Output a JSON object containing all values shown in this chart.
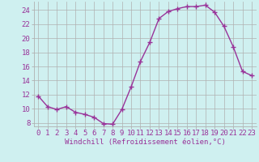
{
  "x": [
    0,
    1,
    2,
    3,
    4,
    5,
    6,
    7,
    8,
    9,
    10,
    11,
    12,
    13,
    14,
    15,
    16,
    17,
    18,
    19,
    20,
    21,
    22,
    23
  ],
  "y": [
    11.8,
    10.3,
    9.9,
    10.3,
    9.5,
    9.2,
    8.8,
    7.9,
    7.8,
    9.9,
    13.1,
    16.7,
    19.4,
    22.8,
    23.8,
    24.2,
    24.5,
    24.5,
    24.7,
    23.7,
    21.7,
    18.8,
    15.3,
    14.7
  ],
  "line_color": "#993399",
  "marker": "+",
  "marker_size": 4,
  "linewidth": 1.0,
  "xlabel": "Windchill (Refroidissement éolien,°C)",
  "xlim": [
    -0.5,
    23.5
  ],
  "ylim": [
    7.5,
    25.2
  ],
  "yticks": [
    8,
    10,
    12,
    14,
    16,
    18,
    20,
    22,
    24
  ],
  "xticks": [
    0,
    1,
    2,
    3,
    4,
    5,
    6,
    7,
    8,
    9,
    10,
    11,
    12,
    13,
    14,
    15,
    16,
    17,
    18,
    19,
    20,
    21,
    22,
    23
  ],
  "background_color": "#cff0f0",
  "grid_color": "#b0b0b0",
  "tick_label_color": "#993399",
  "xlabel_color": "#993399",
  "xlabel_fontsize": 6.5,
  "tick_fontsize": 6.5,
  "markeredgewidth": 1.0
}
